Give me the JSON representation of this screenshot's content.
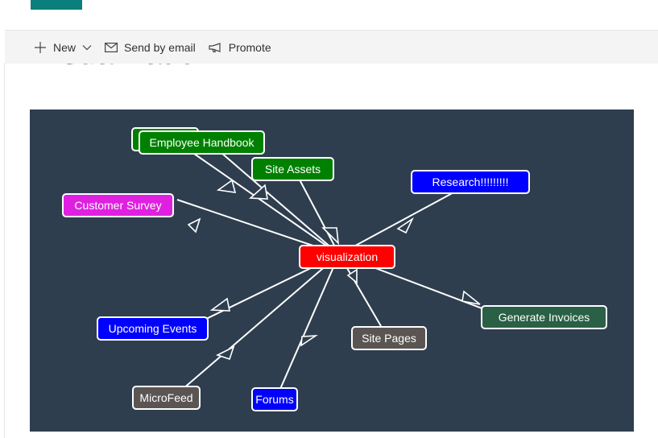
{
  "command_bar": {
    "new_label": "New",
    "send_label": "Send by email",
    "promote_label": "Promote"
  },
  "page": {
    "title": "visualization"
  },
  "graph": {
    "center": {
      "label": "visualization",
      "color": "#ff0000"
    },
    "nodes": [
      {
        "label": "",
        "color": "#008000"
      },
      {
        "label": "Employee Handbook",
        "color": "#008000"
      },
      {
        "label": "Site Assets",
        "color": "#008000"
      },
      {
        "label": "Research!!!!!!!!!",
        "color": "#0000ff"
      },
      {
        "label": "Customer Survey",
        "color": "#e020e0"
      },
      {
        "label": "Upcoming Events",
        "color": "#0000ff"
      },
      {
        "label": "Site Pages",
        "color": "#5a5552"
      },
      {
        "label": "Generate Invoices",
        "color": "#2a6045"
      },
      {
        "label": "MicroFeed",
        "color": "#5a5552"
      },
      {
        "label": "Forums",
        "color": "#0000ff"
      }
    ]
  }
}
